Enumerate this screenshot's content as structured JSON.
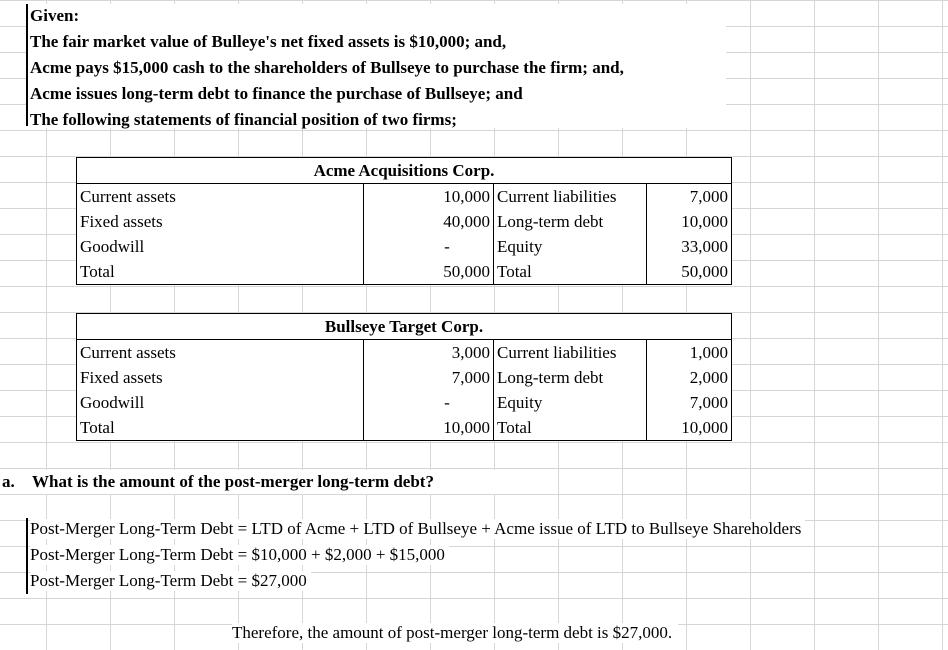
{
  "given": {
    "heading": "Given:",
    "lines": [
      "The fair market value of Bulleye's net fixed assets is $10,000; and,",
      "Acme pays $15,000 cash to the shareholders of Bullseye to purchase the firm; and,",
      "Acme issues long-term debt to finance the purchase of Bullseye; and",
      "The following statements of financial position of two firms;"
    ]
  },
  "acme": {
    "title": "Acme Acquisitions Corp.",
    "rows": [
      {
        "asset": "Current assets",
        "amount": "10,000",
        "liability": "Current liabilities",
        "lamount": "7,000"
      },
      {
        "asset": "Fixed assets",
        "amount": "40,000",
        "liability": "Long-term debt",
        "lamount": "10,000"
      },
      {
        "asset": "Goodwill",
        "amount": "-",
        "liability": "Equity",
        "lamount": "33,000"
      },
      {
        "asset": "Total",
        "amount": "50,000",
        "liability": "Total",
        "lamount": "50,000"
      }
    ]
  },
  "bullseye": {
    "title": "Bullseye Target Corp.",
    "rows": [
      {
        "asset": "Current assets",
        "amount": "3,000",
        "liability": "Current liabilities",
        "lamount": "1,000"
      },
      {
        "asset": "Fixed assets",
        "amount": "7,000",
        "liability": "Long-term debt",
        "lamount": "2,000"
      },
      {
        "asset": "Goodwill",
        "amount": "-",
        "liability": "Equity",
        "lamount": "7,000"
      },
      {
        "asset": "Total",
        "amount": "10,000",
        "liability": "Total",
        "lamount": "10,000"
      }
    ]
  },
  "question": {
    "marker": "a.",
    "text": "What is the amount of the post-merger long-term debt?"
  },
  "work": [
    "Post-Merger Long-Term Debt = LTD of Acme + LTD of Bullseye + Acme issue of LTD to Bullseye Shareholders",
    "Post-Merger Long-Term Debt = $10,000 + $2,000 + $15,000",
    "Post-Merger Long-Term Debt = $27,000"
  ],
  "conclusion": "Therefore, the amount of post-merger long-term debt is $27,000."
}
